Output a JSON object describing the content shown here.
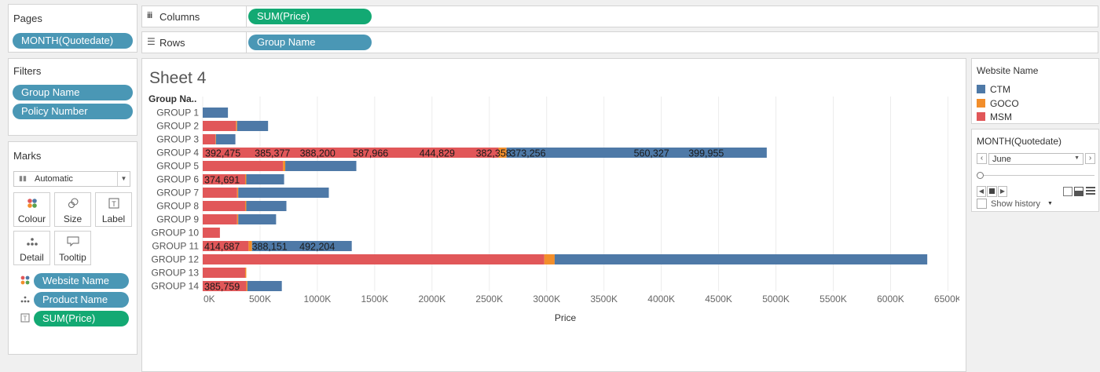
{
  "pages": {
    "title": "Pages",
    "pill": "MONTH(Quotedate)"
  },
  "filters": {
    "title": "Filters",
    "items": [
      "Group Name",
      "Policy Number"
    ]
  },
  "marks": {
    "title": "Marks",
    "type": "Automatic",
    "buttons": {
      "colour": "Colour",
      "size": "Size",
      "label": "Label",
      "detail": "Detail",
      "tooltip": "Tooltip"
    },
    "pills": {
      "website": "Website Name",
      "product": "Product Name",
      "sum": "SUM(Price)"
    }
  },
  "columns": {
    "label": "Columns",
    "pill": "SUM(Price)"
  },
  "rows": {
    "label": "Rows",
    "pill": "Group Name"
  },
  "sheet": {
    "title": "Sheet 4"
  },
  "legend": {
    "title": "Website Name",
    "items": [
      {
        "name": "CTM",
        "color": "#4e79a7"
      },
      {
        "name": "GOCO",
        "color": "#f28e2b"
      },
      {
        "name": "MSM",
        "color": "#e15759"
      }
    ]
  },
  "page_control": {
    "title": "MONTH(Quotedate)",
    "selected": "June",
    "show_history": "Show history"
  },
  "chart_data": {
    "type": "bar",
    "orientation": "horizontal",
    "stacked": true,
    "row_header": "Group Na..",
    "xlabel": "Price",
    "xlim": [
      0,
      6600000
    ],
    "xticks": [
      0,
      500000,
      1000000,
      1500000,
      2000000,
      2500000,
      3000000,
      3500000,
      4000000,
      4500000,
      5000000,
      5500000,
      6000000,
      6500000
    ],
    "xtick_labels": [
      "0K",
      "500K",
      "1000K",
      "1500K",
      "2000K",
      "2500K",
      "3000K",
      "3500K",
      "4000K",
      "4500K",
      "5000K",
      "5500K",
      "6000K",
      "6500K"
    ],
    "categories": [
      "GROUP 1",
      "GROUP 2",
      "GROUP 3",
      "GROUP 4",
      "GROUP 5",
      "GROUP 6",
      "GROUP 7",
      "GROUP 8",
      "GROUP 9",
      "GROUP 10",
      "GROUP 11",
      "GROUP 12",
      "GROUP 13",
      "GROUP 14"
    ],
    "series": [
      {
        "name": "MSM",
        "color": "#e15759",
        "values": [
          0,
          290000,
          110000,
          2580000,
          700000,
          370000,
          300000,
          370000,
          300000,
          150000,
          400000,
          2980000,
          370000,
          380000
        ]
      },
      {
        "name": "GOCO",
        "color": "#f28e2b",
        "values": [
          0,
          10000,
          5000,
          70000,
          20000,
          10000,
          10000,
          10000,
          10000,
          0,
          30000,
          90000,
          10000,
          10000
        ]
      },
      {
        "name": "CTM",
        "color": "#4e79a7",
        "values": [
          220000,
          270000,
          170000,
          2270000,
          620000,
          330000,
          790000,
          350000,
          330000,
          0,
          870000,
          3250000,
          0,
          300000
        ]
      }
    ],
    "data_labels": [
      {
        "group": "GROUP 4",
        "items": [
          "392,475",
          "385,377",
          "388,200",
          "587,966",
          "444,829",
          "382,358",
          "373,256",
          "560,327",
          "399,955"
        ]
      },
      {
        "group": "GROUP 6",
        "items": [
          "374,691"
        ]
      },
      {
        "group": "GROUP 11",
        "items": [
          "414,687",
          "388,151",
          "492,204"
        ]
      },
      {
        "group": "GROUP 14",
        "items": [
          "385,759"
        ]
      }
    ]
  }
}
